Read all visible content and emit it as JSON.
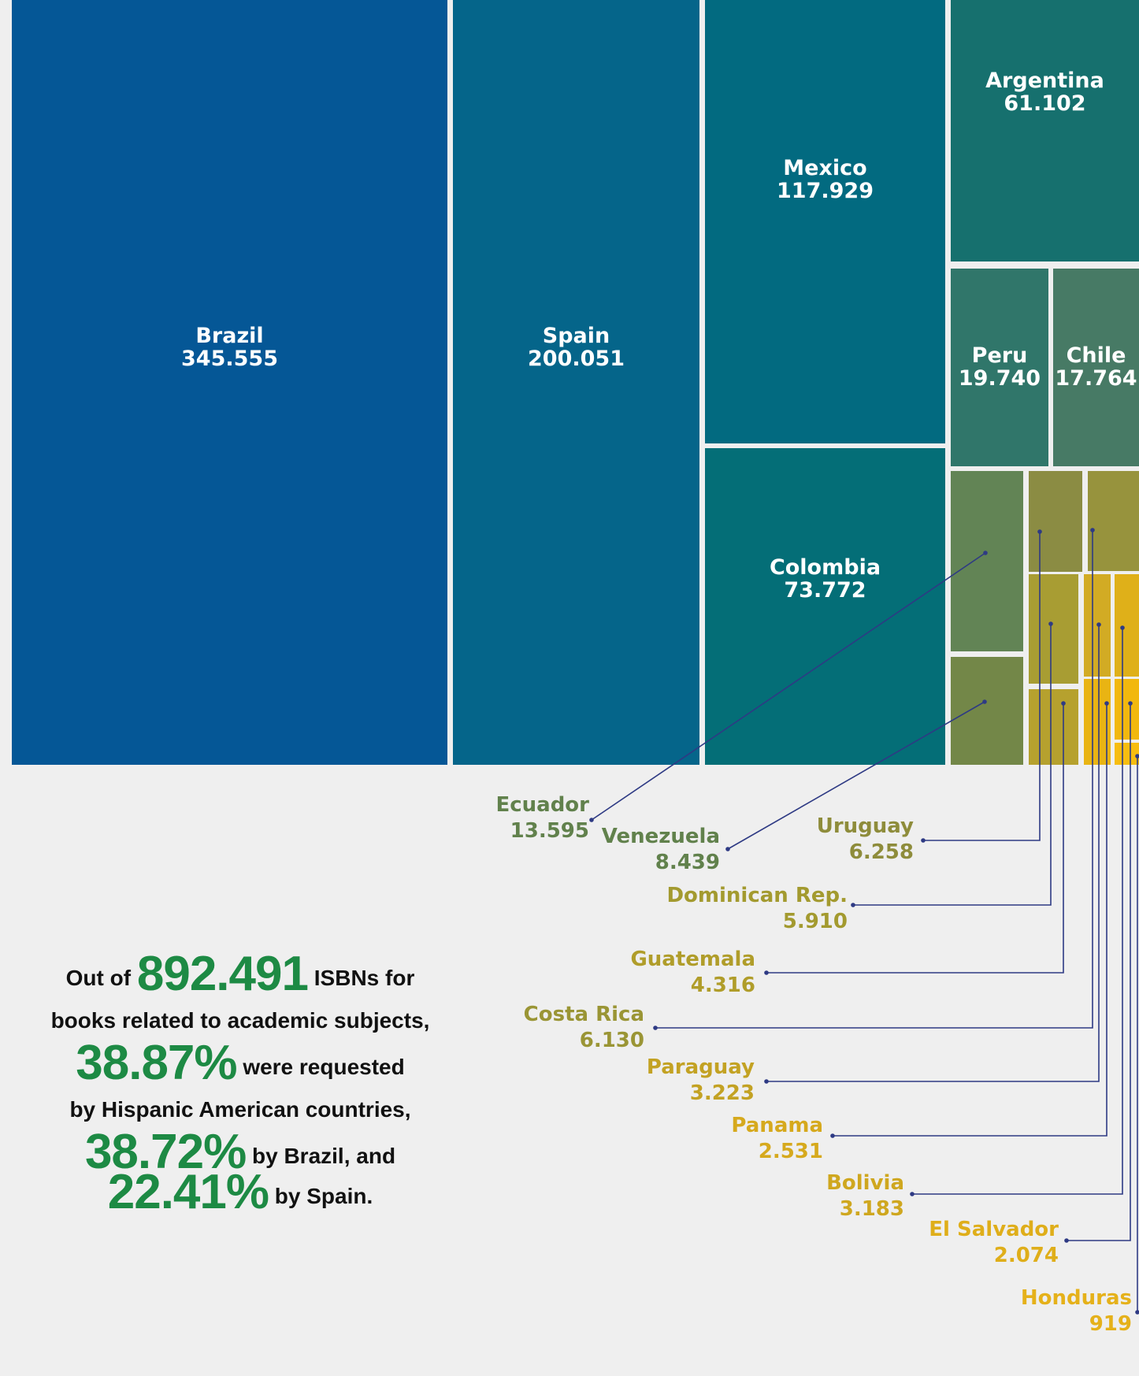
{
  "chart_data": {
    "type": "treemap",
    "items": [
      {
        "name": "Brazil",
        "value": 345555,
        "display": "345.555",
        "color": "#055796",
        "labeled": true
      },
      {
        "name": "Spain",
        "value": 200051,
        "display": "200.051",
        "color": "#05658a",
        "labeled": true
      },
      {
        "name": "Mexico",
        "value": 117929,
        "display": "117.929",
        "color": "#026a80",
        "labeled": true
      },
      {
        "name": "Colombia",
        "value": 73772,
        "display": "73.772",
        "color": "#046e77",
        "labeled": true
      },
      {
        "name": "Argentina",
        "value": 61102,
        "display": "61.102",
        "color": "#16706e",
        "labeled": true
      },
      {
        "name": "Peru",
        "value": 19740,
        "display": "19.740",
        "color": "#30766a",
        "labeled": true
      },
      {
        "name": "Chile",
        "value": 17764,
        "display": "17.764",
        "color": "#477a65",
        "labeled": true
      },
      {
        "name": "Ecuador",
        "value": 13595,
        "display": "13.595",
        "color": "#628455",
        "labeled": false,
        "label_color": "#61814c"
      },
      {
        "name": "Venezuela",
        "value": 8439,
        "display": "8.439",
        "color": "#738748",
        "labeled": false,
        "label_color": "#61814c"
      },
      {
        "name": "Uruguay",
        "value": 6258,
        "display": "6.258",
        "color": "#8b8c43",
        "labeled": false,
        "label_color": "#8e8c3b"
      },
      {
        "name": "Costa Rica",
        "value": 6130,
        "display": "6.130",
        "color": "#97933d",
        "labeled": false,
        "label_color": "#9a9535"
      },
      {
        "name": "Dominican Rep.",
        "value": 5910,
        "display": "5.910",
        "color": "#a89d33",
        "labeled": false,
        "label_color": "#a39a2f"
      },
      {
        "name": "Guatemala",
        "value": 4316,
        "display": "4.316",
        "color": "#b6a12e",
        "labeled": false,
        "label_color": "#b09d2a"
      },
      {
        "name": "Paraguay",
        "value": 3223,
        "display": "3.223",
        "color": "#d2ab24",
        "labeled": false,
        "label_color": "#c3a223"
      },
      {
        "name": "Bolivia",
        "value": 3183,
        "display": "3.183",
        "color": "#dfb019",
        "labeled": false,
        "label_color": "#cfa71f"
      },
      {
        "name": "Panama",
        "value": 2531,
        "display": "2.531",
        "color": "#e9b413",
        "labeled": false,
        "label_color": "#d6a91d"
      },
      {
        "name": "El Salvador",
        "value": 2074,
        "display": "2.074",
        "color": "#f2b80e",
        "labeled": false,
        "label_color": "#dfae1a"
      },
      {
        "name": "Honduras",
        "value": 919,
        "display": "919",
        "color": "#f7bd10",
        "labeled": false,
        "label_color": "#e5b11a"
      }
    ]
  },
  "leader_color": "#2e3a84",
  "summary": {
    "l1a": "Out of",
    "n1": "892.491",
    "l1b": "ISBNs for",
    "l2": "books related to academic subjects,",
    "n2": "38.87%",
    "l3": "were requested",
    "l4": "by Hispanic American countries,",
    "n3": "38.72%",
    "l5": "by Brazil, and",
    "n4": "22.41%",
    "l6": "by Spain."
  }
}
